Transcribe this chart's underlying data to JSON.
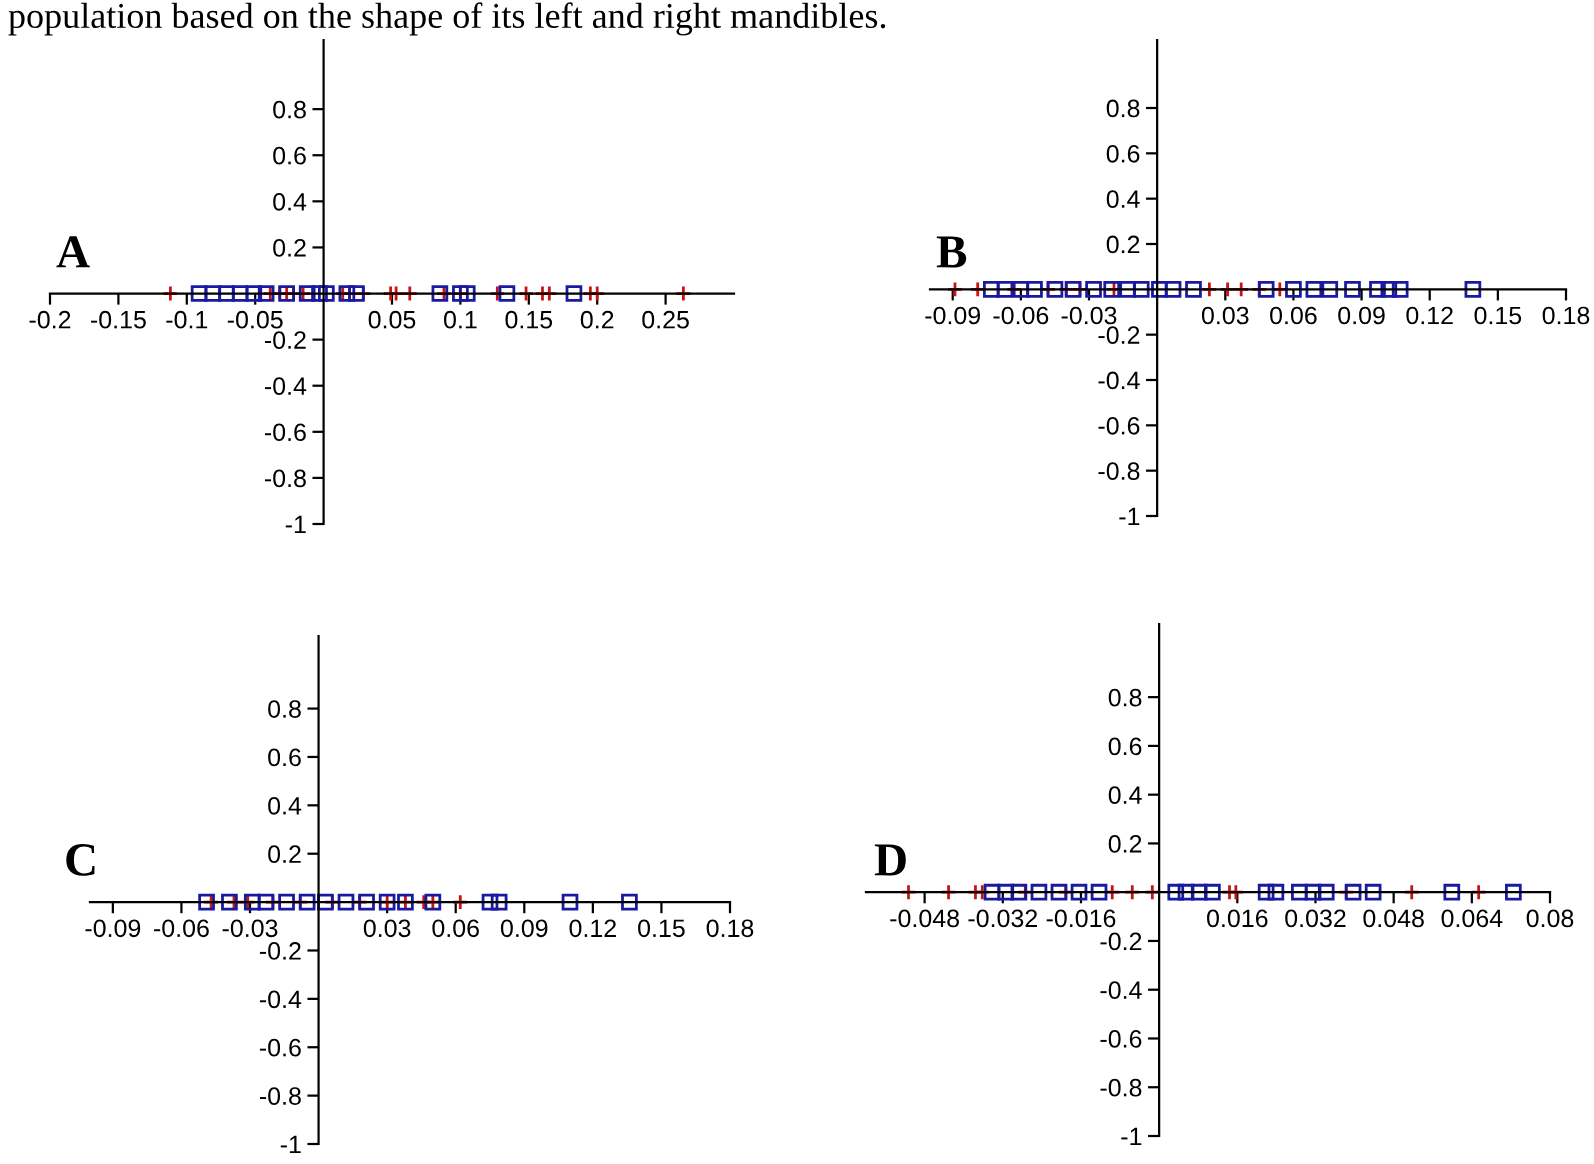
{
  "chart_data": [
    {
      "type": "scatter",
      "annotations": [
        "population based on the shape of its left and right mandibles.",
        "A"
      ],
      "xlim": [
        -0.2,
        0.3
      ],
      "xticks": [
        -0.2,
        -0.15,
        -0.1,
        -0.05,
        0.05,
        0.1,
        0.15,
        0.2,
        0.25
      ],
      "ylim": [
        -1,
        1.1
      ],
      "yticks": [
        -1,
        -0.8,
        -0.6,
        -0.4,
        -0.2,
        0.2,
        0.4,
        0.6,
        0.8
      ],
      "grid": false,
      "legend": false,
      "series": [
        {
          "color": "#cc1111",
          "marker": "cross",
          "x": [
            -0.112,
            -0.039,
            -0.032,
            -0.027,
            -0.022,
            -0.015,
            0.014,
            0.019,
            0.029,
            0.049,
            0.053,
            0.063,
            0.088,
            0.1,
            0.127,
            0.148,
            0.16,
            0.165,
            0.195,
            0.2,
            0.263
          ],
          "values": [
            0,
            0,
            0,
            0,
            0,
            0,
            0,
            0,
            0,
            0,
            0,
            0,
            0,
            0,
            0,
            0,
            0,
            0,
            0,
            0,
            0
          ]
        },
        {
          "color": "#1a1aa0",
          "marker": "square",
          "x": [
            -0.091,
            -0.081,
            -0.071,
            -0.061,
            -0.051,
            -0.042,
            -0.027,
            -0.012,
            -0.003,
            0.002,
            0.017,
            0.024,
            0.085,
            0.1,
            0.105,
            0.134,
            0.183
          ],
          "values": [
            0,
            0,
            0,
            0,
            0,
            0,
            0,
            0,
            0,
            0,
            0,
            0,
            0,
            0,
            0,
            0,
            0
          ]
        }
      ]
    },
    {
      "type": "scatter",
      "annotations": [
        "B"
      ],
      "xlim": [
        -0.1,
        0.18
      ],
      "xticks": [
        -0.09,
        -0.06,
        -0.03,
        0.03,
        0.06,
        0.09,
        0.12,
        0.15,
        0.18
      ],
      "ylim": [
        -1,
        1.1
      ],
      "yticks": [
        -1,
        -0.8,
        -0.6,
        -0.4,
        -0.2,
        0.2,
        0.4,
        0.6,
        0.8
      ],
      "grid": false,
      "legend": false,
      "series": [
        {
          "color": "#cc1111",
          "marker": "cross",
          "x": [
            -0.089,
            -0.079,
            -0.063,
            -0.048,
            -0.04,
            -0.034,
            -0.019,
            0.023,
            0.031,
            0.037,
            0.045,
            0.054
          ],
          "values": [
            0,
            0,
            0,
            0,
            0,
            0,
            0,
            0,
            0,
            0,
            0,
            0
          ]
        },
        {
          "color": "#1a1aa0",
          "marker": "square",
          "x": [
            -0.073,
            -0.067,
            -0.06,
            -0.054,
            -0.045,
            -0.037,
            -0.028,
            -0.02,
            -0.013,
            -0.007,
            0.001,
            0.007,
            0.016,
            0.048,
            0.06,
            0.069,
            0.076,
            0.086,
            0.097,
            0.102,
            0.107,
            0.139
          ],
          "values": [
            0,
            0,
            0,
            0,
            0,
            0,
            0,
            0,
            0,
            0,
            0,
            0,
            0,
            0,
            0,
            0,
            0,
            0,
            0,
            0,
            0,
            0
          ]
        }
      ]
    },
    {
      "type": "scatter",
      "annotations": [
        "C"
      ],
      "xlim": [
        -0.1,
        0.18
      ],
      "xticks": [
        -0.09,
        -0.06,
        -0.03,
        0.03,
        0.06,
        0.09,
        0.12,
        0.15,
        0.18
      ],
      "ylim": [
        -1,
        1.1
      ],
      "yticks": [
        -1,
        -0.8,
        -0.6,
        -0.4,
        -0.2,
        0.2,
        0.4,
        0.6,
        0.8
      ],
      "grid": false,
      "legend": false,
      "series": [
        {
          "color": "#cc1111",
          "marker": "cross",
          "x": [
            -0.047,
            -0.037,
            -0.031,
            -0.02,
            -0.008,
            0.006,
            0.018,
            0.03,
            0.038,
            0.046,
            0.05,
            0.062
          ],
          "values": [
            0,
            0,
            0,
            0,
            0,
            0,
            0,
            0,
            0,
            0,
            0,
            0
          ]
        },
        {
          "color": "#1a1aa0",
          "marker": "square",
          "x": [
            -0.049,
            -0.039,
            -0.029,
            -0.023,
            -0.014,
            -0.005,
            0.003,
            0.012,
            0.021,
            0.03,
            0.038,
            0.05,
            0.075,
            0.079,
            0.11,
            0.136
          ],
          "values": [
            0,
            0,
            0,
            0,
            0,
            0,
            0,
            0,
            0,
            0,
            0,
            0,
            0,
            0,
            0,
            0
          ]
        }
      ]
    },
    {
      "type": "scatter",
      "annotations": [
        "D"
      ],
      "xlim": [
        -0.06,
        0.08
      ],
      "xticks": [
        -0.048,
        -0.032,
        -0.016,
        0.016,
        0.032,
        0.048,
        0.064,
        0.08
      ],
      "ylim": [
        -1,
        1.1
      ],
      "yticks": [
        -1,
        -0.8,
        -0.6,
        -0.4,
        -0.2,
        0.2,
        0.4,
        0.6,
        0.8
      ],
      "grid": false,
      "legend": false,
      "series": [
        {
          "color": "#cc1111",
          "marker": "cross",
          "x": [
            -0.0513,
            -0.0431,
            -0.0376,
            -0.0362,
            -0.0274,
            -0.0191,
            -0.0096,
            -0.0055,
            -0.0014,
            0.0144,
            0.0157,
            0.0383,
            0.0517,
            0.0654
          ],
          "values": [
            0,
            0,
            0,
            0,
            0,
            0,
            0,
            0,
            0,
            0,
            0,
            0,
            0,
            0
          ]
        },
        {
          "color": "#1a1aa0",
          "marker": "square",
          "x": [
            -0.0342,
            -0.0314,
            -0.0287,
            -0.0246,
            -0.0205,
            -0.0164,
            -0.0123,
            0.0034,
            0.0055,
            0.0082,
            0.0109,
            0.0219,
            0.0239,
            0.0287,
            0.0315,
            0.0342,
            0.0397,
            0.0438,
            0.0599,
            0.0725
          ],
          "values": [
            0,
            0,
            0,
            0,
            0,
            0,
            0,
            0,
            0,
            0,
            0,
            0,
            0,
            0,
            0,
            0,
            0,
            0,
            0,
            0
          ]
        }
      ]
    }
  ]
}
